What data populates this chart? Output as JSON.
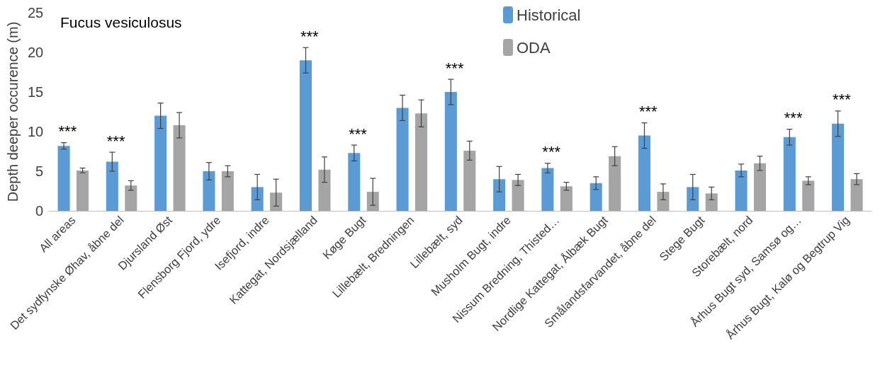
{
  "chart_data": {
    "type": "bar",
    "title": "Fucus vesiculosus",
    "ylabel": "Depth deeper occurence (m)",
    "categories": [
      "All areas",
      "Det sydfynske Øhav, åbne del",
      "Djursland Øst",
      "Flensborg Fjord, ydre",
      "Isefjord, indre",
      "Kattegat, Nordsjælland",
      "Køge Bugt",
      "Lillebælt, Bredningen",
      "Lillebælt, syd",
      "Musholm Bugt, indre",
      "Nissum Bredning, Thisted…",
      "Nordlige Kattegat, Ålbæk Bugt",
      "Smålandsfarvandet, åbne del",
      "Stege Bugt",
      "Storebælt, nord",
      "Århus Bugt syd, Samsø og…",
      "Århus Bugt, Kalø og Begtrup Vig"
    ],
    "series": [
      {
        "name": "Historical",
        "color": "#5b9bd5",
        "values": [
          8.2,
          6.2,
          12,
          5,
          3,
          19,
          7.3,
          13,
          15,
          4,
          5.4,
          3.5,
          9.5,
          3,
          5.1,
          9.3,
          11
        ],
        "errors": [
          0.4,
          1.2,
          1.6,
          1.1,
          1.6,
          1.6,
          1,
          1.6,
          1.6,
          1.6,
          0.6,
          0.8,
          1.6,
          1.6,
          0.8,
          1,
          1.6
        ],
        "value_labels": [
          "***",
          "***",
          null,
          null,
          null,
          "***",
          "***",
          null,
          "***",
          null,
          "***",
          null,
          "***",
          null,
          null,
          "***",
          "***"
        ]
      },
      {
        "name": "ODA",
        "color": "#a5a5a5",
        "values": [
          5.1,
          3.2,
          10.8,
          5,
          2.3,
          5.2,
          2.4,
          12.3,
          7.6,
          3.9,
          3.1,
          6.9,
          2.4,
          2.2,
          6,
          3.8,
          4
        ],
        "errors": [
          0.3,
          0.6,
          1.6,
          0.7,
          1.7,
          1.6,
          1.7,
          1.7,
          1.2,
          0.7,
          0.5,
          1.2,
          1,
          0.8,
          0.9,
          0.5,
          0.7
        ]
      }
    ],
    "ylim": [
      0,
      25
    ],
    "yticks": [
      0,
      5,
      10,
      15,
      20,
      25
    ],
    "legend": "top"
  }
}
